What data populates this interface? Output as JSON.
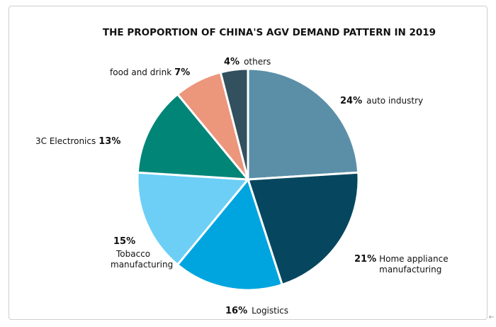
{
  "chart_data": {
    "type": "pie",
    "title": "THE PROPORTION OF CHINA'S AGV DEMAND PATTERN IN 2019",
    "slices": [
      {
        "pct_label": "24%",
        "name_lines": [
          "auto industry"
        ],
        "value": 24,
        "color": "#5b8fa8"
      },
      {
        "pct_label": "21%",
        "name_lines": [
          "Home appliance",
          "manufacturing"
        ],
        "value": 21,
        "color": "#06475f"
      },
      {
        "pct_label": "16%",
        "name_lines": [
          "Logistics"
        ],
        "value": 16,
        "color": "#00a5df"
      },
      {
        "pct_label": "15%",
        "name_lines": [
          "Tobacco",
          "manufacturing"
        ],
        "value": 15,
        "color": "#6dcff6"
      },
      {
        "pct_label": "13%",
        "name_lines": [
          "3C Electronics"
        ],
        "value": 13,
        "color": "#008577"
      },
      {
        "pct_label": "7%",
        "name_lines": [
          "food and drink"
        ],
        "value": 7,
        "color": "#ec967c"
      },
      {
        "pct_label": "4%",
        "name_lines": [
          "others"
        ],
        "value": 4,
        "color": "#32505d"
      }
    ]
  },
  "corner_glyph": "←"
}
